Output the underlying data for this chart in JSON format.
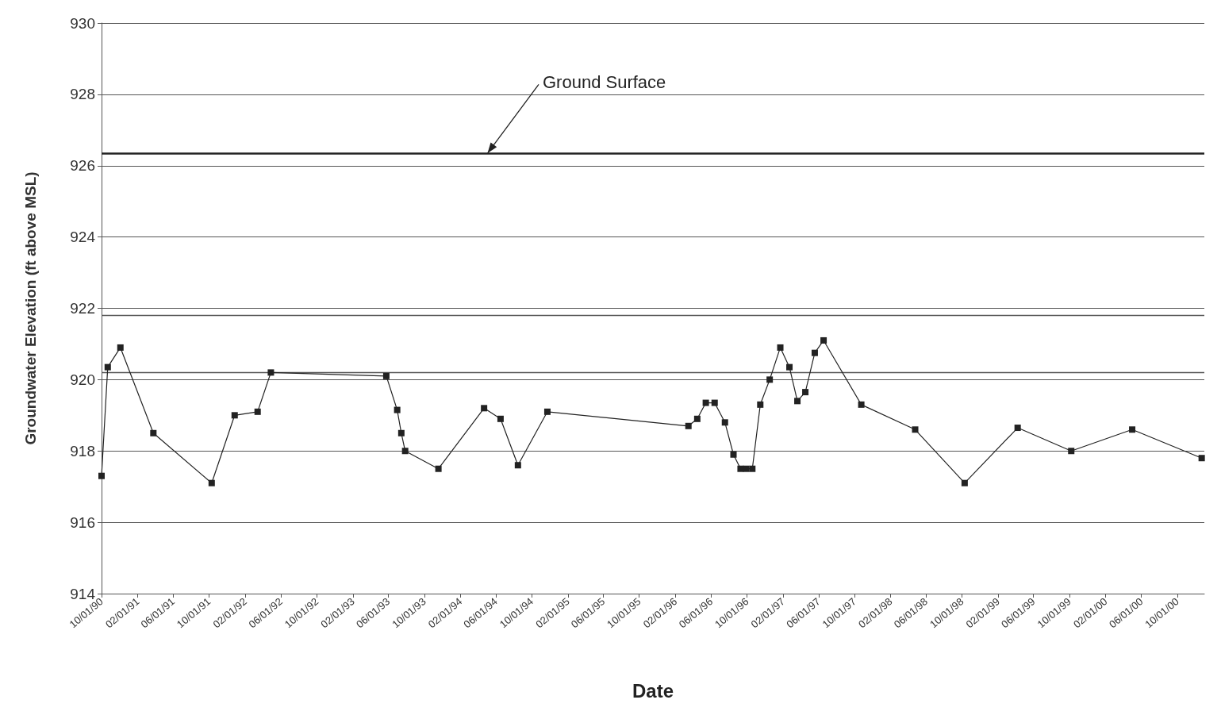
{
  "chart_data": {
    "type": "line",
    "xlabel": "Date",
    "ylabel": "Groundwater Elevation (ft above MSL)",
    "xlim": [
      "1990-10-01",
      "2001-01-01"
    ],
    "xticks": [
      {
        "value": "1990-10-01",
        "label": "10/01/90"
      },
      {
        "value": "1991-02-01",
        "label": "02/01/91"
      },
      {
        "value": "1991-06-01",
        "label": "06/01/91"
      },
      {
        "value": "1991-10-01",
        "label": "10/01/91"
      },
      {
        "value": "1992-02-01",
        "label": "02/01/92"
      },
      {
        "value": "1992-06-01",
        "label": "06/01/92"
      },
      {
        "value": "1992-10-01",
        "label": "10/01/92"
      },
      {
        "value": "1993-02-01",
        "label": "02/01/93"
      },
      {
        "value": "1993-06-01",
        "label": "06/01/93"
      },
      {
        "value": "1993-10-01",
        "label": "10/01/93"
      },
      {
        "value": "1994-02-01",
        "label": "02/01/94"
      },
      {
        "value": "1994-06-01",
        "label": "06/01/94"
      },
      {
        "value": "1994-10-01",
        "label": "10/01/94"
      },
      {
        "value": "1995-02-01",
        "label": "02/01/95"
      },
      {
        "value": "1995-06-01",
        "label": "06/01/95"
      },
      {
        "value": "1995-10-01",
        "label": "10/01/95"
      },
      {
        "value": "1996-02-01",
        "label": "02/01/96"
      },
      {
        "value": "1996-06-01",
        "label": "06/01/96"
      },
      {
        "value": "1996-10-01",
        "label": "10/01/96"
      },
      {
        "value": "1997-02-01",
        "label": "02/01/97"
      },
      {
        "value": "1997-06-01",
        "label": "06/01/97"
      },
      {
        "value": "1997-10-01",
        "label": "10/01/97"
      },
      {
        "value": "1998-02-01",
        "label": "02/01/98"
      },
      {
        "value": "1998-06-01",
        "label": "06/01/98"
      },
      {
        "value": "1998-10-01",
        "label": "10/01/98"
      },
      {
        "value": "1999-02-01",
        "label": "02/01/99"
      },
      {
        "value": "1999-06-01",
        "label": "06/01/99"
      },
      {
        "value": "1999-10-01",
        "label": "10/01/99"
      },
      {
        "value": "2000-02-01",
        "label": "02/01/00"
      },
      {
        "value": "2000-06-01",
        "label": "06/01/00"
      },
      {
        "value": "2000-10-01",
        "label": "10/01/00"
      }
    ],
    "ylim": [
      914,
      930
    ],
    "yticks": [
      914,
      916,
      918,
      920,
      922,
      924,
      926,
      928,
      930
    ],
    "grid": "y",
    "marker": "square",
    "line_style": "solid",
    "x": [
      "1990-10-01",
      "1990-10-22",
      "1990-12-04",
      "1991-03-26",
      "1991-10-10",
      "1991-12-27",
      "1992-03-14",
      "1992-04-28",
      "1993-05-25",
      "1993-07-01",
      "1993-07-15",
      "1993-07-28",
      "1993-11-18",
      "1994-04-22",
      "1994-06-17",
      "1994-08-15",
      "1994-11-23",
      "1996-03-16",
      "1996-04-15",
      "1996-05-14",
      "1996-06-13",
      "1996-07-18",
      "1996-08-16",
      "1996-09-09",
      "1996-09-28",
      "1996-10-19",
      "1996-11-15",
      "1996-12-17",
      "1997-01-22",
      "1997-02-22",
      "1997-03-21",
      "1997-04-17",
      "1997-05-19",
      "1997-06-18",
      "1997-10-24",
      "1998-04-25",
      "1998-10-10",
      "1999-04-08",
      "1999-10-07",
      "2000-05-01",
      "2000-12-23"
    ],
    "series": [
      {
        "color": "#222222",
        "values": [
          917.3,
          920.35,
          920.9,
          918.5,
          917.1,
          919.0,
          919.1,
          920.2,
          920.1,
          919.15,
          918.5,
          918.0,
          917.5,
          919.2,
          918.9,
          917.6,
          919.1,
          918.7,
          918.9,
          919.35,
          919.35,
          918.8,
          917.9,
          917.5,
          917.5,
          917.5,
          919.3,
          920.0,
          920.9,
          920.35,
          919.4,
          919.65,
          920.75,
          921.1,
          919.3,
          918.6,
          917.1,
          918.65,
          918.0,
          918.6,
          917.8
        ]
      }
    ],
    "ref_lines": [
      {
        "axis": "y",
        "value": 926.35,
        "label": "Ground Surface",
        "color": "#222222"
      },
      {
        "axis": "y",
        "value": 921.8,
        "label": null,
        "color": "#555555"
      },
      {
        "axis": "y",
        "value": 920.2,
        "label": null,
        "color": "#555555"
      }
    ]
  }
}
